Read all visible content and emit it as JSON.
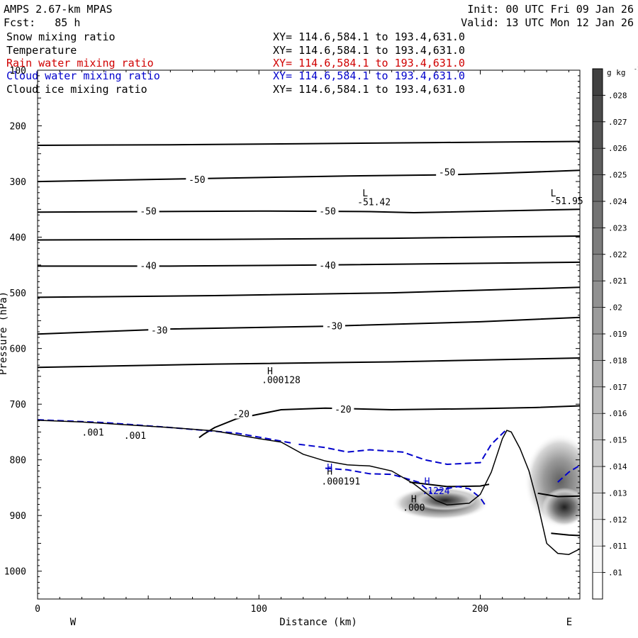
{
  "header": {
    "model": "AMPS 2.67-km MPAS",
    "fcst": "Fcst:   85 h",
    "init": "Init: 00 UTC Fri 09 Jan 26",
    "valid": "Valid: 13 UTC Mon 12 Jan 26",
    "fields": [
      {
        "name": "Snow mixing ratio",
        "xy": "XY= 114.6,584.1 to 193.4,631.0",
        "color": "#000000"
      },
      {
        "name": "Temperature",
        "xy": "XY= 114.6,584.1 to 193.4,631.0",
        "color": "#000000"
      },
      {
        "name": "Rain water mixing ratio",
        "xy": "XY= 114.6,584.1 to 193.4,631.0",
        "color": "#d00000"
      },
      {
        "name": "Cloud water mixing ratio",
        "xy": "XY= 114.6,584.1 to 193.4,631.0",
        "color": "#0000cc"
      },
      {
        "name": "Cloud ice mixing ratio",
        "xy": "XY= 114.6,584.1 to 193.4,631.0",
        "color": "#000000"
      }
    ]
  },
  "chart_data": {
    "type": "contour-cross-section",
    "xlabel": "Distance (km)",
    "ylabel": "Pressure (hPa)",
    "x_ticks": [
      0,
      100,
      200
    ],
    "xlim": [
      0,
      245
    ],
    "y_ticks": [
      100,
      200,
      300,
      400,
      500,
      600,
      700,
      800,
      900,
      1000
    ],
    "ylim": [
      100,
      1050
    ],
    "y_scale": "linear, inverted",
    "left_endpoint": "W",
    "right_endpoint": "E",
    "colorbar": {
      "unit": "g kg",
      "unit_superscript": "-1",
      "levels": [
        ".01",
        ".011",
        ".012",
        ".013",
        ".014",
        ".015",
        ".016",
        ".017",
        ".018",
        ".019",
        ".02",
        ".021",
        ".022",
        ".023",
        ".024",
        ".025",
        ".026",
        ".027",
        ".028"
      ]
    },
    "temperature_contours": [
      {
        "points": [
          [
            0,
            235
          ],
          [
            60,
            234
          ],
          [
            120,
            232
          ],
          [
            180,
            230
          ],
          [
            245,
            228
          ]
        ]
      },
      {
        "points": [
          [
            0,
            300
          ],
          [
            70,
            295
          ],
          [
            140,
            290
          ],
          [
            185,
            288
          ],
          [
            210,
            285
          ],
          [
            245,
            280
          ]
        ],
        "labels": [
          {
            "x": 72,
            "y": 296,
            "text": "-50"
          },
          {
            "x": 185,
            "y": 283,
            "text": "-50"
          }
        ]
      },
      {
        "points": [
          [
            0,
            355
          ],
          [
            50,
            354
          ],
          [
            100,
            353
          ],
          [
            150,
            354
          ],
          [
            170,
            356
          ],
          [
            245,
            350
          ]
        ],
        "labels": [
          {
            "x": 50,
            "y": 353,
            "text": "-50"
          },
          {
            "x": 131,
            "y": 353,
            "text": "-50"
          }
        ]
      },
      {
        "points": [
          [
            0,
            405
          ],
          [
            80,
            404
          ],
          [
            160,
            402
          ],
          [
            245,
            398
          ]
        ]
      },
      {
        "points": [
          [
            0,
            452
          ],
          [
            60,
            452
          ],
          [
            130,
            450
          ],
          [
            245,
            445
          ]
        ],
        "labels": [
          {
            "x": 50,
            "y": 451,
            "text": "-40"
          },
          {
            "x": 131,
            "y": 450,
            "text": "-40"
          }
        ]
      },
      {
        "points": [
          [
            0,
            508
          ],
          [
            80,
            505
          ],
          [
            160,
            500
          ],
          [
            245,
            490
          ]
        ]
      },
      {
        "points": [
          [
            0,
            574
          ],
          [
            60,
            565
          ],
          [
            130,
            560
          ],
          [
            200,
            552
          ],
          [
            245,
            544
          ]
        ],
        "labels": [
          {
            "x": 55,
            "y": 567,
            "text": "-30"
          },
          {
            "x": 134,
            "y": 559,
            "text": "-30"
          }
        ]
      },
      {
        "points": [
          [
            0,
            634
          ],
          [
            80,
            628
          ],
          [
            160,
            624
          ],
          [
            245,
            617
          ]
        ]
      },
      {
        "points": [
          [
            73,
            760
          ],
          [
            75,
            754
          ],
          [
            80,
            742
          ],
          [
            90,
            726
          ],
          [
            110,
            710
          ],
          [
            130,
            707
          ],
          [
            160,
            710
          ],
          [
            200,
            708
          ],
          [
            225,
            706
          ],
          [
            245,
            703
          ]
        ],
        "labels": [
          {
            "x": 92,
            "y": 717,
            "text": "-20"
          },
          {
            "x": 138,
            "y": 709,
            "text": "-20"
          }
        ]
      },
      {
        "points": [
          [
            168,
            840
          ],
          [
            185,
            848
          ],
          [
            200,
            847
          ],
          [
            204,
            844
          ]
        ]
      },
      {
        "points": [
          [
            226,
            860
          ],
          [
            235,
            866
          ],
          [
            245,
            865
          ]
        ]
      },
      {
        "points": [
          [
            232,
            932
          ],
          [
            240,
            935
          ],
          [
            245,
            936
          ]
        ]
      }
    ],
    "terrain": [
      [
        0,
        729
      ],
      [
        20,
        732
      ],
      [
        40,
        737
      ],
      [
        60,
        742
      ],
      [
        80,
        748
      ],
      [
        100,
        762
      ],
      [
        110,
        768
      ],
      [
        120,
        790
      ],
      [
        130,
        802
      ],
      [
        140,
        809
      ],
      [
        150,
        811
      ],
      [
        160,
        820
      ],
      [
        170,
        843
      ],
      [
        180,
        873
      ],
      [
        185,
        881
      ],
      [
        195,
        878
      ],
      [
        200,
        862
      ],
      [
        205,
        822
      ],
      [
        210,
        762
      ],
      [
        212,
        747
      ],
      [
        214,
        750
      ],
      [
        218,
        780
      ],
      [
        222,
        820
      ],
      [
        226,
        880
      ],
      [
        230,
        950
      ],
      [
        235,
        968
      ],
      [
        240,
        970
      ],
      [
        245,
        960
      ]
    ],
    "cloud_water_contours": [
      {
        "points": [
          [
            0,
            728
          ],
          [
            30,
            733
          ],
          [
            60,
            742
          ],
          [
            90,
            752
          ],
          [
            115,
            770
          ]
        ]
      },
      {
        "points": [
          [
            118,
            772
          ],
          [
            130,
            778
          ],
          [
            140,
            786
          ],
          [
            150,
            782
          ],
          [
            165,
            786
          ],
          [
            175,
            800
          ],
          [
            185,
            808
          ],
          [
            200,
            805
          ],
          [
            205,
            772
          ],
          [
            212,
            745
          ]
        ]
      },
      {
        "points": [
          [
            130,
            815
          ],
          [
            140,
            818
          ],
          [
            150,
            825
          ],
          [
            160,
            826
          ],
          [
            172,
            840
          ],
          [
            178,
            860
          ]
        ]
      },
      {
        "points": [
          [
            180,
            855
          ],
          [
            190,
            848
          ],
          [
            195,
            852
          ],
          [
            200,
            868
          ],
          [
            202,
            880
          ]
        ]
      },
      {
        "points": [
          [
            235,
            840
          ],
          [
            240,
            822
          ],
          [
            245,
            810
          ]
        ]
      }
    ],
    "snow_shading": [
      {
        "x": 182,
        "p": 878,
        "rx": 22,
        "ry": 30,
        "value": 0.026
      },
      {
        "x": 184,
        "p": 873,
        "rx": 14,
        "ry": 18,
        "value": 0.028
      },
      {
        "x": 236,
        "p": 838,
        "rx": 16,
        "ry": 85,
        "value": 0.02
      },
      {
        "x": 238,
        "p": 885,
        "rx": 10,
        "ry": 35,
        "value": 0.028
      }
    ],
    "annotations": [
      {
        "x": 148,
        "p": 320,
        "text": "L",
        "color": "#000000"
      },
      {
        "x": 152,
        "p": 336,
        "text": "-51.42",
        "color": "#000000"
      },
      {
        "x": 233,
        "p": 320,
        "text": "L",
        "color": "#000000"
      },
      {
        "x": 239,
        "p": 334,
        "text": "-51.95",
        "color": "#000000"
      },
      {
        "x": 105,
        "p": 640,
        "text": "H",
        "color": "#000000"
      },
      {
        "x": 110,
        "p": 656,
        "text": ".000128",
        "color": "#000000"
      },
      {
        "x": 25,
        "p": 750,
        "text": ".001",
        "color": "#000000"
      },
      {
        "x": 44,
        "p": 756,
        "text": ".001",
        "color": "#000000"
      },
      {
        "x": 132,
        "p": 820,
        "text": "H",
        "color": "#000000"
      },
      {
        "x": 137,
        "p": 838,
        "text": ".000191",
        "color": "#000000"
      },
      {
        "x": 132,
        "p": 813,
        "text": "H",
        "color": "#0000cc"
      },
      {
        "x": 176,
        "p": 838,
        "text": "H",
        "color": "#0000cc"
      },
      {
        "x": 180,
        "p": 855,
        "text": ".1224",
        "color": "#0000cc"
      },
      {
        "x": 170,
        "p": 870,
        "text": "H",
        "color": "#000000"
      },
      {
        "x": 170,
        "p": 885,
        "text": ".000",
        "color": "#000000"
      }
    ]
  }
}
